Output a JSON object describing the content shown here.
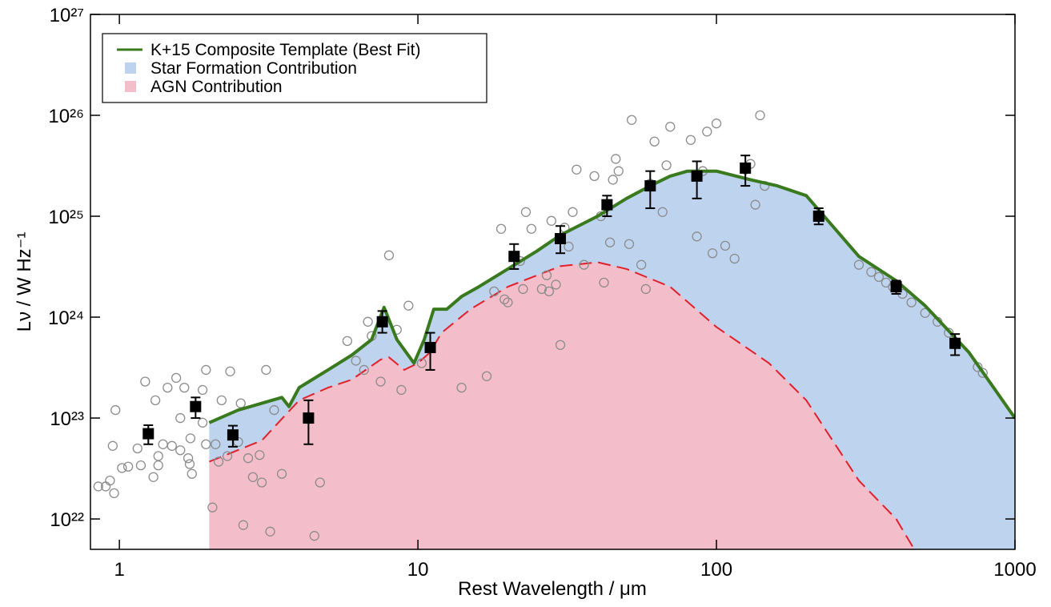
{
  "chart_data": {
    "type": "line",
    "x_label": "Rest Wavelength / μm",
    "y_label": "Lν / W Hz⁻¹",
    "log_x": true,
    "log_y": true,
    "xlim": [
      0.8,
      1000
    ],
    "ylim": [
      5e+21,
      1e+27
    ],
    "xticks": [
      1,
      10,
      100,
      1000
    ],
    "yticks": [
      {
        "value": 1e+22,
        "label": "10²²"
      },
      {
        "value": 1e+23,
        "label": "10²³"
      },
      {
        "value": 1e+24,
        "label": "10²⁴"
      },
      {
        "value": 1e+25,
        "label": "10²⁵"
      },
      {
        "value": 1e+26,
        "label": "10²⁶"
      },
      {
        "value": 1e+27,
        "label": "10²⁷"
      }
    ],
    "legend": "upper left",
    "series": [
      {
        "name": "K+15 Composite Template (Best Fit)",
        "kind": "line",
        "color": "#3a7a1e",
        "x": [
          2,
          2.5,
          3,
          3.5,
          3.7,
          4,
          5,
          6,
          7,
          7.7,
          8.5,
          9.7,
          10.5,
          11.3,
          12.5,
          14,
          16,
          20,
          25,
          30,
          40,
          50,
          60,
          70,
          80,
          100,
          130,
          160,
          200,
          300,
          400,
          500,
          700,
          1000
        ],
        "values": [
          9e+22,
          1.2e+23,
          1.4e+23,
          1.6e+23,
          1.3e+23,
          2e+23,
          3e+23,
          4.2e+23,
          6e+23,
          1.25e+24,
          6e+23,
          3.5e+23,
          6e+23,
          1.2e+24,
          1.2e+24,
          1.6e+24,
          2e+24,
          3e+24,
          4.5e+24,
          6.5e+24,
          1e+25,
          1.5e+25,
          2e+25,
          2.5e+25,
          2.8e+25,
          2.8e+25,
          2.3e+25,
          2e+25,
          1.6e+25,
          4e+24,
          2.3e+24,
          1.3e+24,
          4.5e+23,
          1e+23
        ]
      },
      {
        "name": "Star Formation Contribution",
        "kind": "area-under",
        "color": "#bdd3ee"
      },
      {
        "name": "AGN Contribution",
        "kind": "area-dashed",
        "color": "#f4bdca",
        "line_color": "#e0202a",
        "x": [
          2,
          3,
          4,
          5,
          6,
          7.5,
          8,
          9,
          10,
          11,
          12,
          15,
          20,
          30,
          40,
          50,
          70,
          100,
          150,
          200,
          300,
          400,
          460
        ],
        "values": [
          3.7e+22,
          6e+22,
          1.5e+23,
          2e+23,
          2.4e+23,
          3.8e+23,
          4e+23,
          3e+23,
          3.5e+23,
          4.5e+23,
          7e+23,
          1.2e+24,
          2e+24,
          3.2e+24,
          3.5e+24,
          3e+24,
          2e+24,
          8e+23,
          3.5e+23,
          1.5e+23,
          2.4e+22,
          1e+22,
          5e+21
        ]
      },
      {
        "kind": "squares",
        "color": "#000000",
        "x": [
          1.25,
          1.8,
          2.4,
          4.3,
          7.6,
          11,
          21,
          30,
          43,
          60,
          86,
          125,
          220,
          400,
          630
        ],
        "values": [
          7e+22,
          1.3e+23,
          6.8e+22,
          1e+23,
          9e+23,
          5e+23,
          4e+24,
          6e+24,
          1.3e+25,
          2e+25,
          2.5e+25,
          3e+25,
          1e+25,
          2e+24,
          5.5e+23
        ],
        "lower": [
          5.5e+22,
          1e+23,
          5.2e+22,
          5.5e+22,
          7e+23,
          3e+23,
          3e+24,
          4.3e+24,
          1e+25,
          1.2e+25,
          1.5e+25,
          2e+25,
          8.3e+24,
          1.7e+24,
          4.2e+23
        ],
        "upper": [
          8.5e+22,
          1.6e+23,
          8.4e+22,
          1.5e+23,
          1.15e+24,
          7e+23,
          5.3e+24,
          8e+24,
          1.6e+25,
          2.8e+25,
          3.5e+25,
          4e+25,
          1.2e+25,
          2.3e+24,
          6.8e+23
        ]
      },
      {
        "kind": "circles",
        "color": "#8c8c8c",
        "x": [
          0.85,
          0.9,
          0.93,
          0.96,
          0.97,
          0.95,
          1.02,
          1.07,
          1.15,
          1.18,
          1.22,
          1.3,
          1.32,
          1.35,
          1.35,
          1.4,
          1.45,
          1.5,
          1.55,
          1.6,
          1.6,
          1.65,
          1.7,
          1.72,
          1.73,
          1.75,
          1.9,
          1.95,
          1.95,
          1.9,
          2.05,
          2.1,
          2.15,
          2.2,
          2.3,
          2.35,
          2.5,
          2.55,
          2.6,
          2.7,
          2.8,
          2.95,
          3.0,
          3.1,
          3.2,
          3.3,
          3.5,
          4.5,
          4.7,
          5.8,
          6.2,
          6.6,
          6.8,
          7,
          7.5,
          8,
          8.5,
          8.8,
          9.3,
          10.3,
          14,
          17,
          18,
          19,
          19.5,
          20,
          22,
          22.5,
          23,
          24,
          26,
          27,
          27.5,
          28,
          29,
          30,
          31,
          32,
          33,
          34,
          36,
          39,
          41,
          42,
          44,
          45,
          46,
          47,
          51,
          52,
          56,
          58,
          60,
          62,
          66,
          68,
          70,
          82,
          86,
          90,
          93,
          97,
          100,
          107,
          115,
          125,
          130,
          135,
          140,
          145,
          300,
          330,
          350,
          370,
          390,
          420,
          450,
          500,
          550,
          600,
          750,
          780
        ],
        "values": [
          2.1e+22,
          2.1e+22,
          2.4e+22,
          1.8e+22,
          1.2e+23,
          5.3e+22,
          3.2e+22,
          3.3e+22,
          5e+22,
          3.4e+22,
          2.3e+23,
          2.6e+22,
          1.5e+23,
          3.4e+22,
          4.2e+22,
          5.5e+22,
          2e+23,
          5.3e+22,
          2.5e+23,
          1e+23,
          4.8e+22,
          2e+23,
          4e+22,
          3.5e+22,
          6.3e+22,
          2.8e+22,
          9e+22,
          5.5e+22,
          3e+23,
          1.9e+23,
          1.3e+22,
          5.5e+22,
          3.7e+22,
          1.5e+23,
          4.2e+22,
          2.9e+23,
          5.8e+22,
          1.4e+23,
          8.7e+21,
          4e+22,
          2.6e+22,
          4.3e+22,
          2.3e+22,
          3e+23,
          7.5e+21,
          1.2e+23,
          2.8e+22,
          6.8e+21,
          2.3e+22,
          5.8e+23,
          3.7e+23,
          3e+23,
          9e+23,
          6.5e+23,
          2.3e+23,
          4.1e+24,
          7.5e+23,
          1.9e+23,
          1.3e+24,
          3.5e+23,
          2e+23,
          2.6e+23,
          1.8e+24,
          7.5e+24,
          1.5e+24,
          1.4e+24,
          3.6e+24,
          1.9e+24,
          1.1e+25,
          7.5e+24,
          1.9e+24,
          2.6e+24,
          1.8e+24,
          9e+24,
          2.1e+24,
          5.3e+23,
          7.7e+24,
          5e+24,
          1.1e+25,
          2.9e+25,
          3.3e+24,
          2.5e+25,
          1e+25,
          2.2e+24,
          5.5e+24,
          2.3e+25,
          3.7e+25,
          2.8e+25,
          5.3e+24,
          9e+25,
          3.3e+24,
          1.9e+24,
          2.1e+25,
          5.5e+25,
          1.1e+25,
          3.2e+25,
          7.7e+25,
          5.7e+25,
          6.3e+24,
          2.8e+25,
          6.9e+25,
          4.3e+24,
          8.3e+25,
          5.1e+24,
          3.8e+24,
          2.9e+25,
          3.3e+25,
          1.3e+25,
          1e+26,
          2e+25,
          3.3e+24,
          2.8e+24,
          2.5e+24,
          2.2e+24,
          2e+24,
          1.7e+24,
          1.4e+24,
          1.1e+24,
          9e+23,
          7e+23,
          3.2e+23,
          2.8e+23
        ]
      }
    ]
  }
}
